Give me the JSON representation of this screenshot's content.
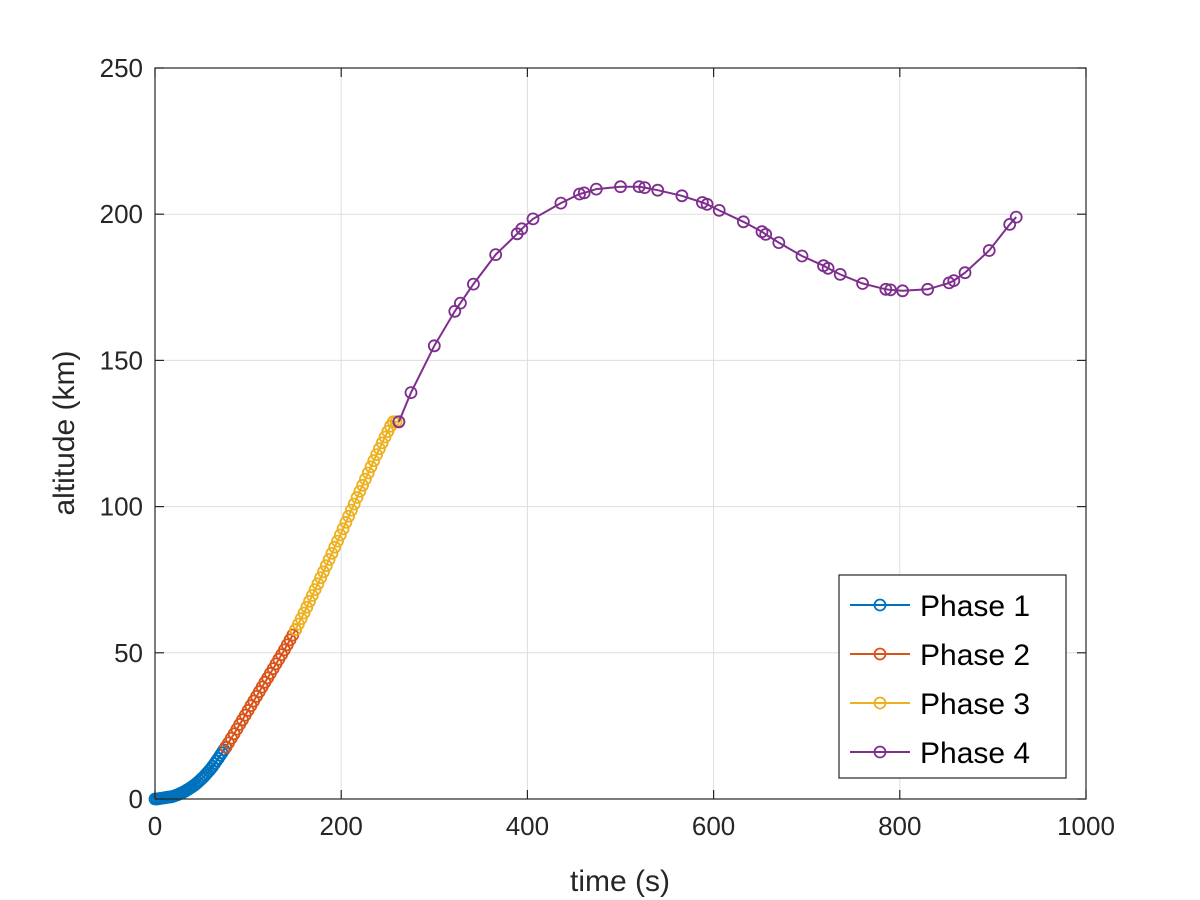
{
  "chart_data": {
    "type": "line",
    "title": "",
    "xlabel": "time (s)",
    "ylabel": "altitude (km)",
    "xlim": [
      0,
      1000
    ],
    "ylim": [
      0,
      250
    ],
    "xticks": [
      0,
      200,
      400,
      600,
      800,
      1000
    ],
    "yticks": [
      0,
      50,
      100,
      150,
      200,
      250
    ],
    "xtick_labels": [
      "0",
      "200",
      "400",
      "600",
      "800",
      "1000"
    ],
    "ytick_labels": [
      "0",
      "50",
      "100",
      "150",
      "200",
      "250"
    ],
    "grid": true,
    "legend_position": "bottom-right",
    "marker": "circle",
    "series": [
      {
        "name": "Phase 1",
        "color": "#0072BD",
        "x": [
          0,
          2,
          4,
          6,
          8,
          10,
          12,
          14,
          16,
          18,
          20,
          22,
          24,
          26,
          28,
          30,
          32,
          34,
          36,
          38,
          40,
          42,
          44,
          46,
          48,
          50,
          52,
          54,
          56,
          58,
          60,
          62,
          64,
          66,
          68,
          70,
          72,
          74,
          76
        ],
        "y": [
          0.0,
          0.0,
          0.1,
          0.2,
          0.3,
          0.4,
          0.5,
          0.6,
          0.7,
          0.8,
          1.0,
          1.2,
          1.4,
          1.7,
          2.0,
          2.3,
          2.6,
          3.0,
          3.4,
          3.8,
          4.2,
          4.7,
          5.2,
          5.7,
          6.3,
          6.9,
          7.5,
          8.2,
          8.9,
          9.6,
          10.4,
          11.2,
          12.1,
          13.0,
          13.9,
          14.9,
          15.8,
          16.8,
          17.7
        ]
      },
      {
        "name": "Phase 2",
        "color": "#D95319",
        "x": [
          76,
          79,
          82,
          85,
          88,
          91,
          94,
          97,
          100,
          103,
          106,
          109,
          112,
          115,
          118,
          121,
          124,
          127,
          130,
          133,
          136,
          139,
          142,
          145,
          148,
          151
        ],
        "y": [
          17.7,
          19.2,
          20.8,
          22.3,
          23.9,
          25.5,
          27.1,
          28.7,
          30.3,
          31.9,
          33.5,
          35.1,
          36.7,
          38.3,
          39.9,
          41.4,
          43.0,
          44.6,
          46.2,
          47.8,
          49.4,
          51.0,
          52.7,
          54.4,
          56.1,
          57.9
        ]
      },
      {
        "name": "Phase 3",
        "color": "#EDB120",
        "x": [
          151,
          154,
          157,
          160,
          163,
          166,
          169,
          172,
          175,
          178,
          181,
          184,
          187,
          190,
          193,
          196,
          199,
          202,
          205,
          208,
          211,
          214,
          217,
          220,
          223,
          226,
          229,
          232,
          235,
          238,
          241,
          244,
          247,
          250,
          253,
          256,
          259,
          262
        ],
        "y": [
          57.9,
          59.8,
          61.7,
          63.6,
          65.6,
          67.6,
          69.6,
          71.6,
          73.6,
          75.7,
          77.7,
          79.8,
          81.9,
          84.0,
          86.1,
          88.2,
          90.3,
          92.4,
          94.6,
          96.7,
          98.8,
          100.9,
          103.1,
          105.2,
          107.3,
          109.4,
          111.5,
          113.6,
          115.7,
          117.8,
          119.8,
          121.8,
          123.8,
          125.7,
          127.5,
          129.0,
          129.0,
          129.0
        ]
      },
      {
        "name": "Phase 4",
        "color": "#7E2F8E",
        "x": [
          262,
          275,
          300,
          322,
          328,
          342,
          366,
          389,
          394,
          406,
          436,
          456,
          461,
          474,
          500,
          520,
          526,
          540,
          566,
          588,
          593,
          606,
          632,
          652,
          656,
          670,
          695,
          718,
          723,
          736,
          760,
          785,
          790,
          803,
          830,
          853,
          858,
          870,
          896,
          918,
          925
        ],
        "y": [
          129.0,
          139.0,
          155.0,
          166.8,
          169.6,
          176.1,
          186.2,
          193.3,
          195.0,
          198.4,
          203.8,
          206.9,
          207.3,
          208.6,
          209.4,
          209.4,
          209.1,
          208.2,
          206.3,
          204.0,
          203.4,
          201.3,
          197.4,
          194.0,
          193.1,
          190.3,
          185.7,
          182.4,
          181.5,
          179.4,
          176.3,
          174.3,
          174.1,
          173.8,
          174.3,
          176.5,
          177.3,
          180.0,
          187.6,
          196.5,
          199.0
        ]
      }
    ]
  }
}
